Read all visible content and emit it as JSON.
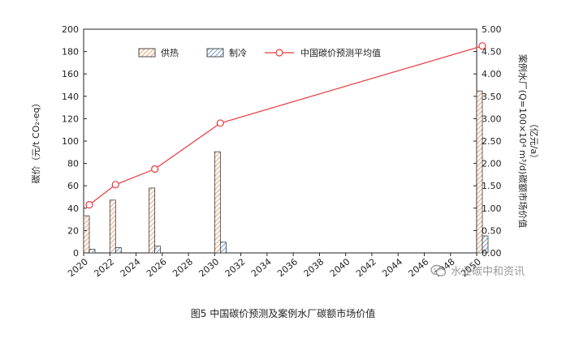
{
  "chart_data": {
    "type": "bar",
    "x": [
      2020,
      2022,
      2025,
      2030,
      2050
    ],
    "series": [
      {
        "name": "供热",
        "type": "bar",
        "axis": "right",
        "values": [
          0.83,
          1.18,
          1.45,
          2.26,
          3.62
        ],
        "color": "#e8a87c",
        "pattern": "diagonal-hatch"
      },
      {
        "name": "制冷",
        "type": "bar",
        "axis": "right",
        "values": [
          0.08,
          0.12,
          0.15,
          0.24,
          0.38
        ],
        "color": "#7fa7d6",
        "pattern": "diagonal-hatch"
      },
      {
        "name": "中国碳价预测平均值",
        "type": "line",
        "axis": "left",
        "values": [
          43,
          61,
          75,
          116,
          185
        ],
        "color": "#e8383d",
        "marker": "open-circle"
      }
    ],
    "xlim": [
      2020,
      2050
    ],
    "x_ticks": [
      "2020",
      "2022",
      "2024",
      "2026",
      "2028",
      "2030",
      "2032",
      "2034",
      "2036",
      "2038",
      "2040",
      "2042",
      "2044",
      "2046",
      "2048",
      "2050"
    ],
    "ylim": [
      0,
      200
    ],
    "y_ticks": [
      "0",
      "20",
      "40",
      "60",
      "80",
      "100",
      "120",
      "140",
      "160",
      "180",
      "200"
    ],
    "y2lim": [
      0,
      5
    ],
    "y2_ticks": [
      "0.00",
      "0.50",
      "1.00",
      "1.50",
      "2.00",
      "2.50",
      "3.00",
      "3.50",
      "4.00",
      "4.50",
      "5.00"
    ],
    "ylabel": "碳价（元/t CO₂-eq）",
    "y2label": "案例水厂(Q=100×10⁴ m³/d)碳额市场价值",
    "y2label_unit": "（亿元/a）",
    "legend_position": "top",
    "grid": false
  },
  "caption": "图5  中国碳价预测及案例水厂碳额市场价值",
  "watermark": {
    "text": "水业碳中和资讯",
    "icon": "wechat-icon"
  }
}
